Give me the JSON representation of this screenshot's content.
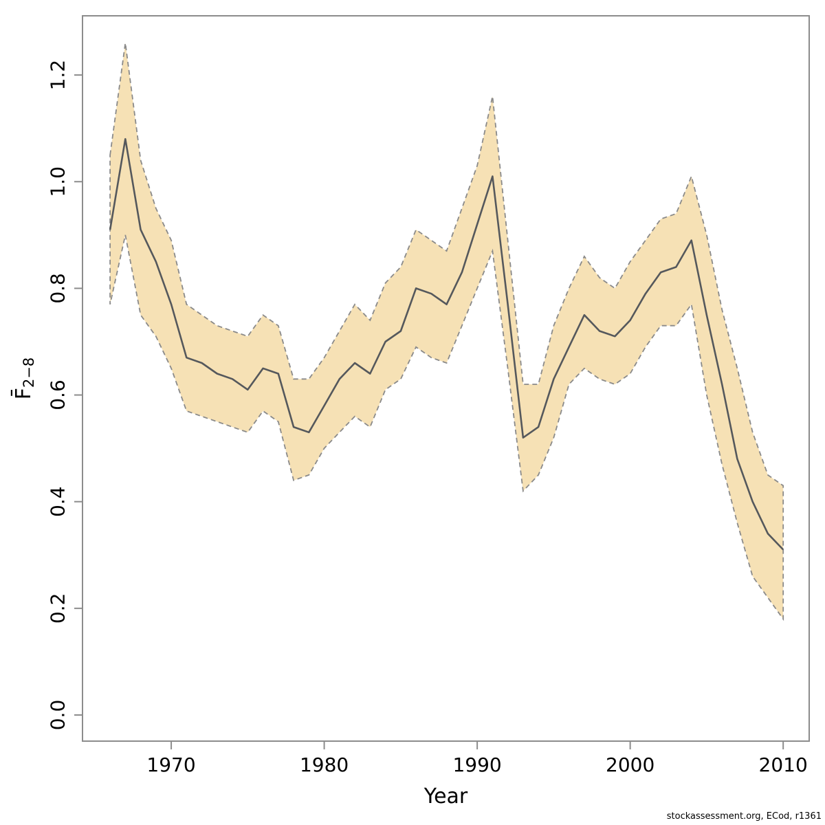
{
  "watermark": "stockassessment.org, ECod, r1361",
  "colors": {
    "background": "#FFFFFF",
    "band_fill": "#F6E1B5",
    "band_border": "#8A8A8A",
    "line": "#55585C",
    "axis": "#8C8C8C",
    "text": "#000000"
  },
  "chart_data": {
    "type": "line",
    "title": "",
    "xlabel": "Year",
    "ylabel_base": "F̄",
    "ylabel_sub": "2−8",
    "grid": false,
    "legend": false,
    "xlim": [
      1964.2,
      2011.7
    ],
    "ylim": [
      -0.049,
      1.311
    ],
    "x_ticks": [
      1970,
      1980,
      1990,
      2000,
      2010
    ],
    "x_tick_labels": [
      "1970",
      "1980",
      "1990",
      "2000",
      "2010"
    ],
    "y_ticks": [
      0.0,
      0.2,
      0.4,
      0.6,
      0.8,
      1.0,
      1.2
    ],
    "y_tick_labels": [
      "0.0",
      "0.2",
      "0.4",
      "0.6",
      "0.8",
      "1.0",
      "1.2"
    ],
    "x": [
      1966,
      1967,
      1968,
      1969,
      1970,
      1971,
      1972,
      1973,
      1974,
      1975,
      1976,
      1977,
      1978,
      1979,
      1980,
      1981,
      1982,
      1983,
      1984,
      1985,
      1986,
      1987,
      1988,
      1989,
      1990,
      1991,
      1992,
      1993,
      1994,
      1995,
      1996,
      1997,
      1998,
      1999,
      2000,
      2001,
      2002,
      2003,
      2004,
      2005,
      2006,
      2007,
      2008,
      2009,
      2010
    ],
    "series": [
      {
        "name": "Fbar_estimate",
        "style": "solid",
        "values": [
          0.91,
          1.08,
          0.91,
          0.85,
          0.77,
          0.67,
          0.66,
          0.64,
          0.63,
          0.61,
          0.65,
          0.64,
          0.54,
          0.53,
          0.58,
          0.63,
          0.66,
          0.64,
          0.7,
          0.72,
          0.8,
          0.79,
          0.77,
          0.83,
          0.92,
          1.01,
          0.77,
          0.52,
          0.54,
          0.63,
          0.69,
          0.75,
          0.72,
          0.71,
          0.74,
          0.79,
          0.83,
          0.84,
          0.89,
          0.75,
          0.62,
          0.48,
          0.4,
          0.34,
          0.31
        ]
      },
      {
        "name": "ci_lower",
        "style": "dashed-band-edge",
        "values": [
          0.77,
          0.9,
          0.75,
          0.71,
          0.65,
          0.57,
          0.56,
          0.55,
          0.54,
          0.53,
          0.57,
          0.55,
          0.44,
          0.45,
          0.5,
          0.53,
          0.56,
          0.54,
          0.61,
          0.63,
          0.69,
          0.67,
          0.66,
          0.73,
          0.8,
          0.87,
          0.65,
          0.42,
          0.45,
          0.52,
          0.62,
          0.65,
          0.63,
          0.62,
          0.64,
          0.69,
          0.73,
          0.73,
          0.77,
          0.6,
          0.47,
          0.36,
          0.26,
          0.22,
          0.18
        ]
      },
      {
        "name": "ci_upper",
        "style": "dashed-band-edge",
        "values": [
          1.05,
          1.26,
          1.04,
          0.95,
          0.89,
          0.77,
          0.75,
          0.73,
          0.72,
          0.71,
          0.75,
          0.73,
          0.63,
          0.63,
          0.67,
          0.72,
          0.77,
          0.74,
          0.81,
          0.84,
          0.91,
          0.89,
          0.87,
          0.95,
          1.03,
          1.16,
          0.89,
          0.62,
          0.62,
          0.73,
          0.8,
          0.86,
          0.82,
          0.8,
          0.85,
          0.89,
          0.93,
          0.94,
          1.01,
          0.9,
          0.76,
          0.65,
          0.53,
          0.45,
          0.43
        ]
      }
    ]
  }
}
